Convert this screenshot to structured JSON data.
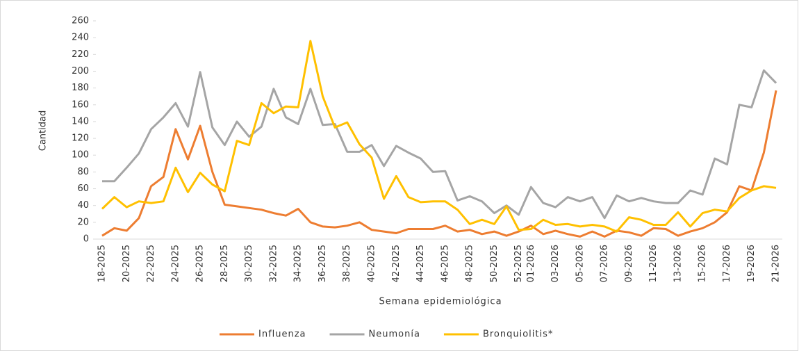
{
  "chart_data": {
    "type": "line",
    "x_label": "Semana epidemiológica",
    "y_label": "Cantidad",
    "categories": [
      "18-2025",
      null,
      "20-2025",
      null,
      "22-2025",
      null,
      "24-2025",
      null,
      "26-2025",
      null,
      "28-2025",
      null,
      "30-2025",
      null,
      "32-2025",
      null,
      "34-2025",
      null,
      "36-2025",
      null,
      "38-2025",
      null,
      "40-2025",
      null,
      "42-2025",
      null,
      "44-2025",
      null,
      "46-2025",
      null,
      "48-2025",
      null,
      "50-2025",
      null,
      "52-2025",
      "01-2026",
      null,
      "03-2026",
      null,
      "05-2026",
      null,
      "07-2026",
      null,
      "09-2026",
      null,
      "11-2026",
      null,
      "13-2026",
      null,
      "15-2026",
      null,
      "17-2026",
      null,
      "19-2026",
      null,
      "21-2026"
    ],
    "series": [
      {
        "name": "Influenza",
        "color": "#ed7d31",
        "values": [
          4,
          13,
          10,
          25,
          63,
          74,
          131,
          95,
          135,
          80,
          41,
          39,
          37,
          35,
          31,
          28,
          36,
          20,
          15,
          14,
          16,
          20,
          11,
          9,
          7,
          12,
          12,
          12,
          16,
          9,
          11,
          6,
          9,
          4,
          9,
          16,
          6,
          10,
          6,
          3,
          9,
          3,
          10,
          8,
          4,
          13,
          12,
          4,
          9,
          13,
          20,
          32,
          63,
          58,
          103,
          177
        ]
      },
      {
        "name": "Neumonía",
        "color": "#a5a5a5",
        "values": [
          69,
          69,
          85,
          102,
          131,
          145,
          162,
          134,
          199,
          133,
          112,
          140,
          122,
          134,
          179,
          145,
          137,
          179,
          136,
          137,
          104,
          104,
          112,
          87,
          111,
          103,
          96,
          80,
          81,
          46,
          51,
          45,
          31,
          40,
          29,
          62,
          43,
          38,
          50,
          45,
          50,
          25,
          52,
          45,
          49,
          45,
          43,
          43,
          58,
          53,
          96,
          89,
          160,
          157,
          201,
          186
        ]
      },
      {
        "name": "Bronquiolitis*",
        "color": "#ffc000",
        "values": [
          36,
          50,
          38,
          45,
          43,
          45,
          85,
          56,
          79,
          65,
          57,
          117,
          112,
          162,
          150,
          158,
          157,
          236,
          170,
          133,
          139,
          113,
          97,
          48,
          75,
          50,
          44,
          45,
          45,
          35,
          18,
          23,
          18,
          39,
          11,
          12,
          23,
          17,
          18,
          15,
          17,
          15,
          9,
          26,
          23,
          17,
          17,
          32,
          15,
          31,
          35,
          33,
          49,
          58,
          63,
          61
        ]
      }
    ],
    "ylim": [
      0,
      260
    ],
    "yticks": [
      0,
      20,
      40,
      60,
      80,
      100,
      120,
      140,
      160,
      180,
      200,
      220,
      240,
      260
    ],
    "legend": "bottom"
  }
}
